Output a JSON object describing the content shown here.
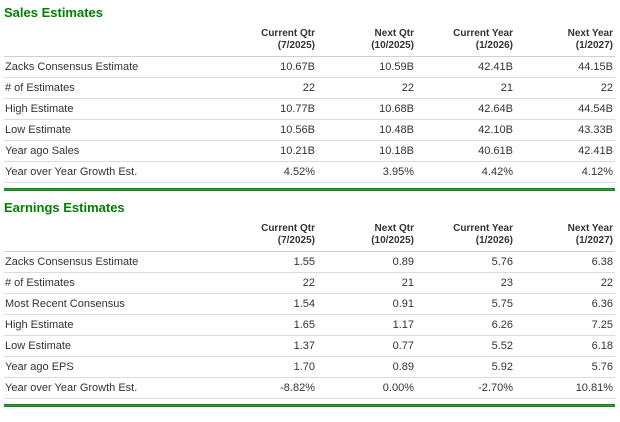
{
  "colors": {
    "accent_green": "#008000",
    "divider_green": "#2e9b2e",
    "row_border": "#dcdcdc",
    "header_border": "#c9d2d8",
    "text": "#333333",
    "background": "#ffffff"
  },
  "sections": [
    {
      "title": "Sales Estimates",
      "columns": [
        {
          "label": "Current Qtr",
          "period": "(7/2025)"
        },
        {
          "label": "Next Qtr",
          "period": "(10/2025)"
        },
        {
          "label": "Current Year",
          "period": "(1/2026)"
        },
        {
          "label": "Next Year",
          "period": "(1/2027)"
        }
      ],
      "rows": [
        {
          "label": "Zacks Consensus Estimate",
          "values": [
            "10.67B",
            "10.59B",
            "42.41B",
            "44.15B"
          ]
        },
        {
          "label": "# of Estimates",
          "values": [
            "22",
            "22",
            "21",
            "22"
          ]
        },
        {
          "label": "High Estimate",
          "values": [
            "10.77B",
            "10.68B",
            "42.64B",
            "44.54B"
          ]
        },
        {
          "label": "Low Estimate",
          "values": [
            "10.56B",
            "10.48B",
            "42.10B",
            "43.33B"
          ]
        },
        {
          "label": "Year ago Sales",
          "values": [
            "10.21B",
            "10.18B",
            "40.61B",
            "42.41B"
          ]
        },
        {
          "label": "Year over Year Growth Est.",
          "values": [
            "4.52%",
            "3.95%",
            "4.42%",
            "4.12%"
          ]
        }
      ]
    },
    {
      "title": "Earnings Estimates",
      "columns": [
        {
          "label": "Current Qtr",
          "period": "(7/2025)"
        },
        {
          "label": "Next Qtr",
          "period": "(10/2025)"
        },
        {
          "label": "Current Year",
          "period": "(1/2026)"
        },
        {
          "label": "Next Year",
          "period": "(1/2027)"
        }
      ],
      "rows": [
        {
          "label": "Zacks Consensus Estimate",
          "values": [
            "1.55",
            "0.89",
            "5.76",
            "6.38"
          ]
        },
        {
          "label": "# of Estimates",
          "values": [
            "22",
            "21",
            "23",
            "22"
          ]
        },
        {
          "label": "Most Recent Consensus",
          "values": [
            "1.54",
            "0.91",
            "5.75",
            "6.36"
          ]
        },
        {
          "label": "High Estimate",
          "values": [
            "1.65",
            "1.17",
            "6.26",
            "7.25"
          ]
        },
        {
          "label": "Low Estimate",
          "values": [
            "1.37",
            "0.77",
            "5.52",
            "6.18"
          ]
        },
        {
          "label": "Year ago EPS",
          "values": [
            "1.70",
            "0.89",
            "5.92",
            "5.76"
          ]
        },
        {
          "label": "Year over Year Growth Est.",
          "values": [
            "-8.82%",
            "0.00%",
            "-2.70%",
            "10.81%"
          ]
        }
      ]
    }
  ]
}
